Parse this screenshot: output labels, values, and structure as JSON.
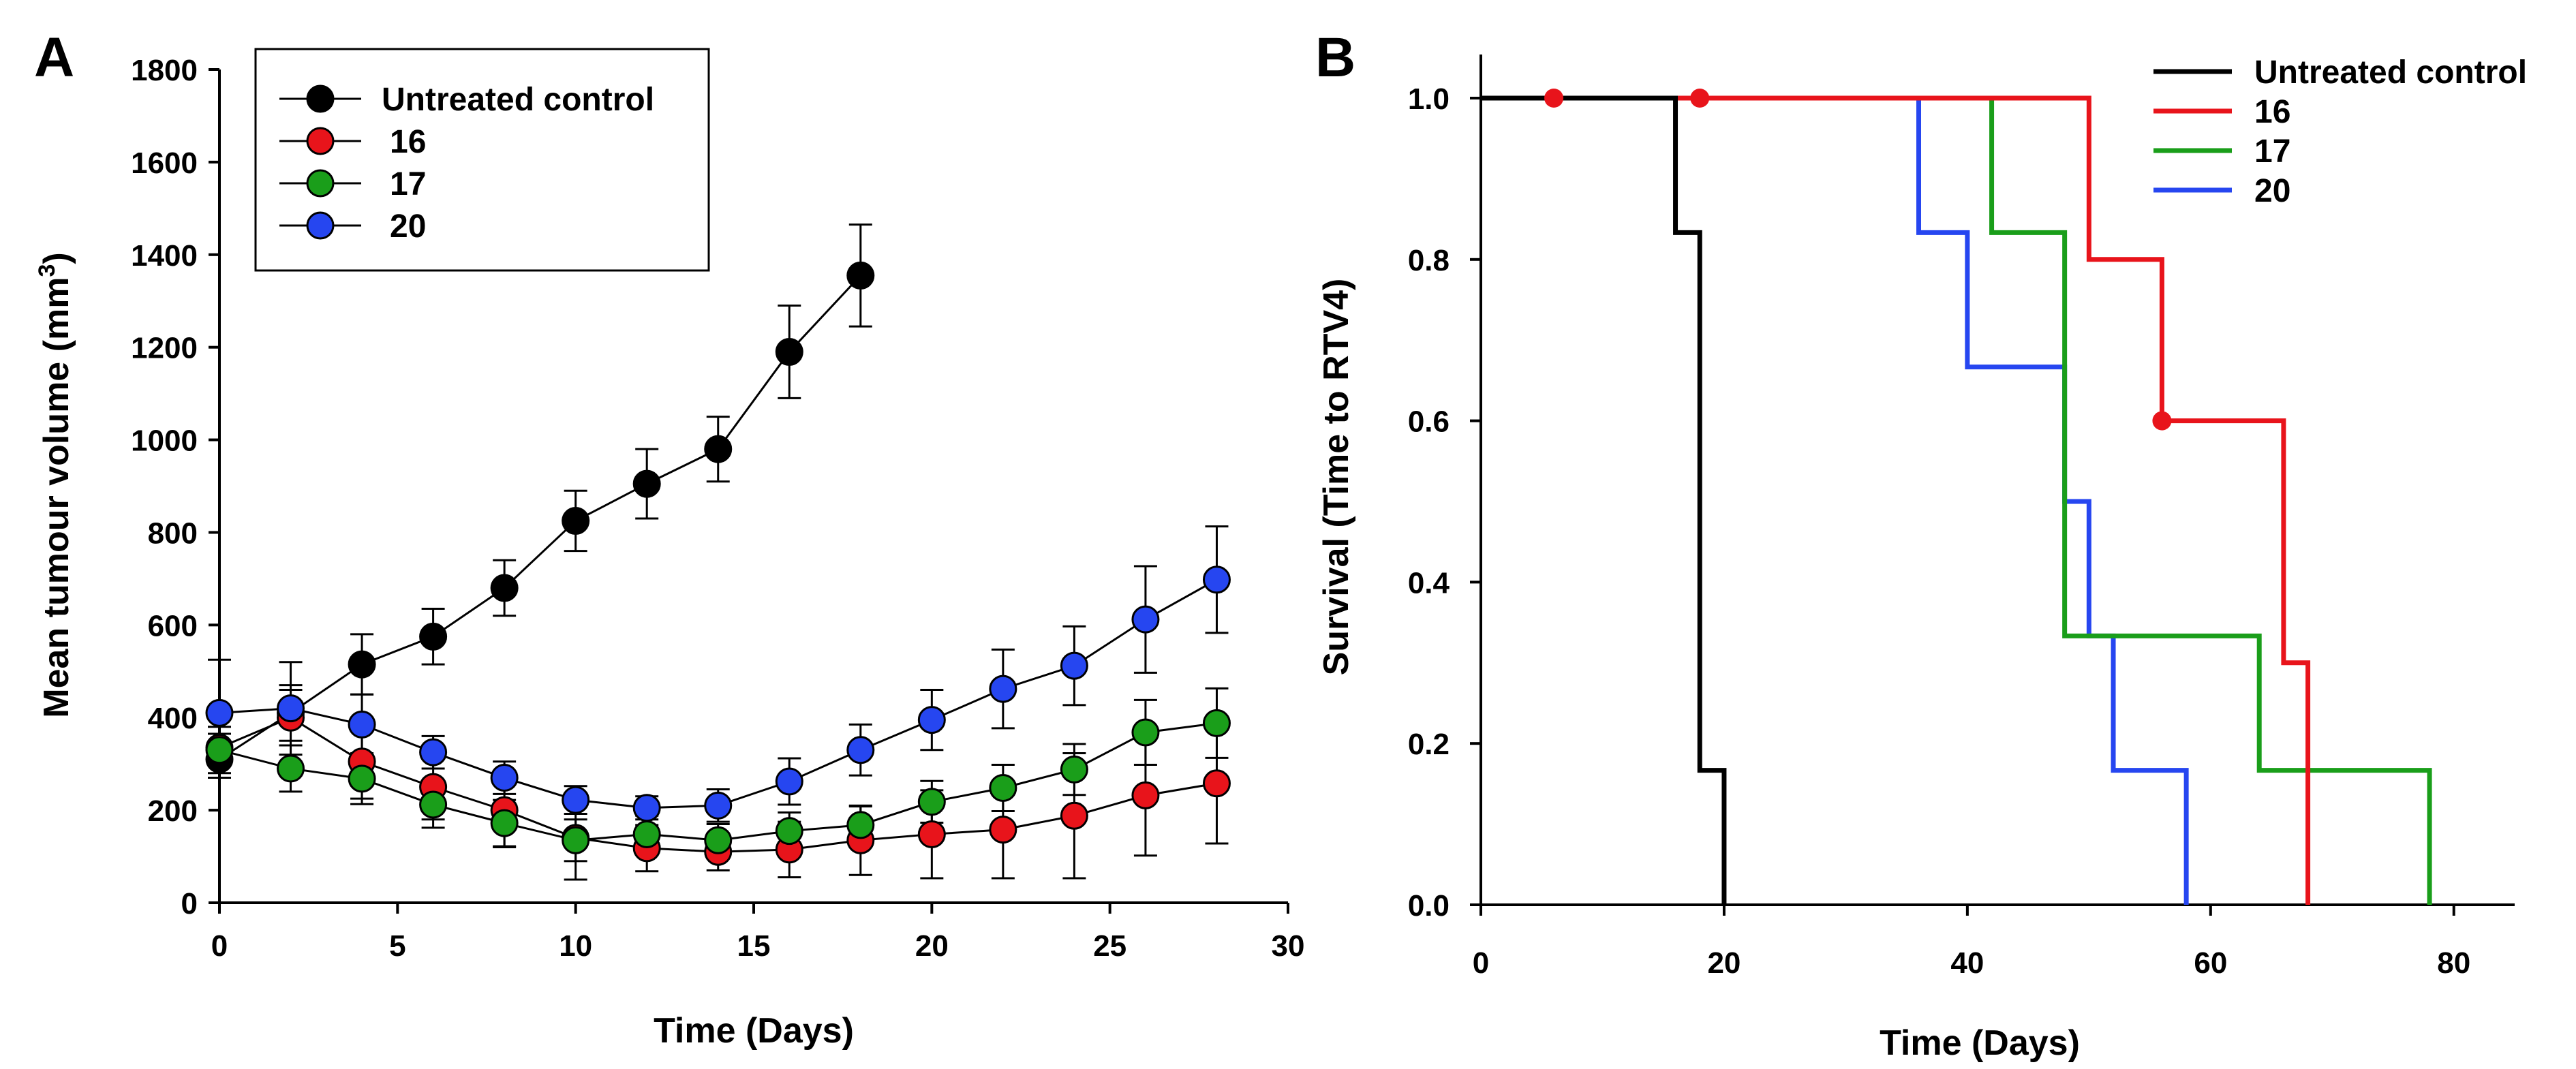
{
  "chart_data": [
    {
      "panel_label": "A",
      "type": "line",
      "xlabel": "Time (Days)",
      "ylabel": "Mean tumour volume (mm",
      "ylabel_sup": "3",
      "ylabel_close": ")",
      "xlim": [
        0,
        30
      ],
      "ylim": [
        0,
        1800
      ],
      "xticks": [
        0,
        5,
        10,
        15,
        20,
        25,
        30
      ],
      "yticks": [
        0,
        200,
        400,
        600,
        800,
        1000,
        1200,
        1400,
        1600,
        1800
      ],
      "grid": false,
      "legend_position": "top-left",
      "series": [
        {
          "name": "Untreated control",
          "color": "#000000",
          "x": [
            0,
            2,
            4,
            6,
            8,
            10,
            12,
            14,
            16,
            18
          ],
          "y": [
            310,
            410,
            515,
            575,
            680,
            825,
            905,
            980,
            1190,
            1355
          ],
          "err": [
            40,
            60,
            65,
            60,
            60,
            65,
            75,
            70,
            100,
            110
          ]
        },
        {
          "name": "16",
          "color": "#e8141b",
          "x": [
            0,
            2,
            4,
            6,
            8,
            10,
            12,
            14,
            16,
            18,
            20,
            22,
            24,
            26,
            28
          ],
          "y": [
            335,
            400,
            305,
            250,
            200,
            140,
            118,
            110,
            115,
            135,
            148,
            158,
            188,
            232,
            258
          ],
          "err": [
            30,
            60,
            80,
            70,
            80,
            90,
            50,
            40,
            60,
            75,
            95,
            105,
            135,
            130,
            130
          ]
        },
        {
          "name": "17",
          "color": "#1a9e1a",
          "x": [
            0,
            2,
            4,
            6,
            8,
            10,
            12,
            14,
            16,
            18,
            20,
            22,
            24,
            26,
            28
          ],
          "y": [
            330,
            290,
            268,
            212,
            172,
            135,
            148,
            135,
            155,
            168,
            218,
            248,
            288,
            368,
            388
          ],
          "err": [
            50,
            50,
            55,
            50,
            50,
            45,
            40,
            35,
            40,
            40,
            45,
            50,
            55,
            70,
            75
          ]
        },
        {
          "name": "20",
          "color": "#2646f0",
          "x": [
            0,
            2,
            4,
            6,
            8,
            10,
            12,
            14,
            16,
            18,
            20,
            22,
            24,
            26,
            28
          ],
          "y": [
            410,
            420,
            385,
            325,
            270,
            222,
            205,
            210,
            262,
            330,
            395,
            462,
            512,
            612,
            698
          ],
          "err": [
            115,
            100,
            65,
            35,
            35,
            30,
            25,
            35,
            50,
            55,
            65,
            85,
            85,
            115,
            115
          ]
        }
      ]
    },
    {
      "panel_label": "B",
      "type": "line",
      "subtype": "step",
      "xlabel": "Time (Days)",
      "ylabel": "Survival (Time to RTV4)",
      "xlim": [
        0,
        85
      ],
      "ylim": [
        0,
        1.05
      ],
      "xticks": [
        0,
        20,
        40,
        60,
        80
      ],
      "yticks": [
        "0.0",
        "0.2",
        "0.4",
        "0.6",
        "0.8",
        "1.0"
      ],
      "grid": false,
      "legend_position": "top-right",
      "series": [
        {
          "name": "Untreated control",
          "color": "#000000",
          "steps": [
            [
              0,
              1.0
            ],
            [
              16,
              0.8333
            ],
            [
              18,
              0.1667
            ],
            [
              20,
              0.0
            ]
          ],
          "censored": []
        },
        {
          "name": "16",
          "color": "#e8141b",
          "steps": [
            [
              0,
              1.0
            ],
            [
              50,
              0.8
            ],
            [
              56,
              0.6
            ],
            [
              66,
              0.3
            ],
            [
              68,
              0.0
            ]
          ],
          "censored": [
            [
              6,
              1.0
            ],
            [
              18,
              1.0
            ],
            [
              56,
              0.6
            ]
          ]
        },
        {
          "name": "17",
          "color": "#1a9e1a",
          "steps": [
            [
              0,
              1.0
            ],
            [
              42,
              0.8333
            ],
            [
              48,
              0.3333
            ],
            [
              64,
              0.1667
            ],
            [
              78,
              0.0
            ]
          ],
          "censored": []
        },
        {
          "name": "20",
          "color": "#2646f0",
          "steps": [
            [
              0,
              1.0
            ],
            [
              36,
              0.8333
            ],
            [
              40,
              0.6667
            ],
            [
              48,
              0.5
            ],
            [
              50,
              0.3333
            ],
            [
              52,
              0.1667
            ],
            [
              58,
              0.0
            ]
          ],
          "censored": []
        }
      ]
    }
  ]
}
